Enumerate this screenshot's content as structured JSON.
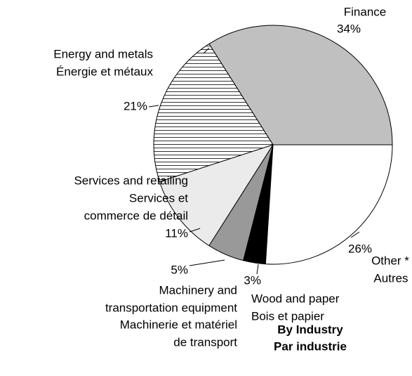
{
  "chart_data": {
    "type": "pie",
    "title": [
      "By Industry",
      "Par industrie"
    ],
    "categories": [
      [
        "Finance"
      ],
      [
        "Energy and metals",
        "Énergie et métaux"
      ],
      [
        "Services and retailing",
        "Services et",
        "commerce de détail"
      ],
      [
        "Machinery and",
        "transportation equipment",
        "Machinerie et matériel",
        "de transport"
      ],
      [
        "Wood and paper",
        "Bois et papier"
      ],
      [
        "Other *",
        "Autres"
      ]
    ],
    "values": [
      34,
      21,
      11,
      5,
      3,
      26
    ],
    "value_labels": [
      "34%",
      "21%",
      "11%",
      "5%",
      "3%",
      "26%"
    ],
    "colors": [
      "#c0c0c0",
      "#ffffff",
      "#ebebeb",
      "#999999",
      "#000000",
      "#ffffff"
    ],
    "hatch": [
      false,
      true,
      false,
      false,
      false,
      false
    ]
  }
}
